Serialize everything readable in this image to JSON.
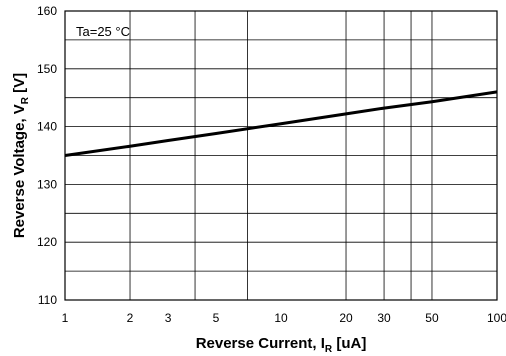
{
  "chart_data": {
    "type": "line",
    "x_scale": "log",
    "y_scale": "linear",
    "xlim": [
      1,
      100
    ],
    "ylim": [
      110,
      160
    ],
    "grid": true,
    "x_ticks": [
      1,
      2,
      3,
      5,
      10,
      20,
      30,
      50,
      100
    ],
    "x_tick_labels": [
      "1",
      "2",
      "3",
      "5",
      "10",
      "20",
      "30",
      "50",
      "100"
    ],
    "x_gridlines": [
      2,
      4,
      7,
      20,
      30,
      40,
      50
    ],
    "y_ticks": [
      110,
      120,
      130,
      140,
      150,
      160
    ],
    "y_tick_labels": [
      "110",
      "120",
      "130",
      "140",
      "150",
      "160"
    ],
    "y_gridlines": [
      115,
      125,
      135,
      145,
      155
    ],
    "xlabel_main": "Reverse Current, I",
    "xlabel_sub": "R",
    "xlabel_unit": " [uA]",
    "ylabel_main": "Reverse Voltage, V",
    "ylabel_sub": "R",
    "ylabel_unit": " [V]",
    "annotation": "Ta=25 °C",
    "line_color": "#000000",
    "series": [
      {
        "x": [
          1,
          2,
          3,
          5,
          10,
          20,
          30,
          50,
          100
        ],
        "y": [
          135.0,
          136.6,
          137.6,
          138.8,
          140.5,
          142.2,
          143.2,
          144.3,
          146.0
        ]
      }
    ]
  }
}
